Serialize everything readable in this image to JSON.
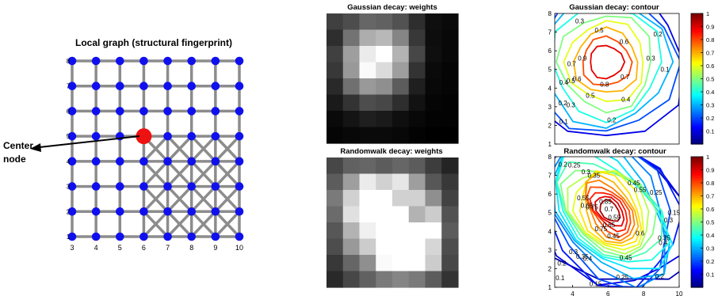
{
  "chart_data": [
    {
      "type": "graph",
      "title": "Local graph (structural fingerprint)",
      "x_ticks": [
        "3",
        "4",
        "5",
        "6",
        "7",
        "8",
        "9",
        "10"
      ],
      "y_ticks": [
        "1",
        "2",
        "3",
        "4",
        "5",
        "6",
        "7",
        "8"
      ],
      "grid": {
        "x": [
          3,
          4,
          5,
          6,
          7,
          8,
          9,
          10
        ],
        "y": [
          1,
          2,
          3,
          4,
          5,
          6,
          7,
          8
        ]
      },
      "node_color": "#1010ee",
      "edge_color": "#8c8c8c",
      "center_node": {
        "x": 6,
        "y": 5,
        "color": "#ee1111"
      },
      "diagonal_region": {
        "x": [
          6,
          10
        ],
        "y": [
          1,
          5
        ]
      },
      "annotation": {
        "line1": "Center",
        "line2": "node"
      }
    },
    {
      "type": "heatmap",
      "title": "Gaussian decay: weights",
      "colormap": "gray",
      "values": [
        [
          0.25,
          0.3,
          0.4,
          0.38,
          0.32,
          0.18,
          0.06,
          0.04
        ],
        [
          0.18,
          0.45,
          0.68,
          0.72,
          0.52,
          0.22,
          0.05,
          0.03
        ],
        [
          0.25,
          0.62,
          0.92,
          1.0,
          0.7,
          0.28,
          0.06,
          0.03
        ],
        [
          0.22,
          0.6,
          0.98,
          0.86,
          0.62,
          0.2,
          0.04,
          0.02
        ],
        [
          0.16,
          0.44,
          0.6,
          0.56,
          0.36,
          0.12,
          0.03,
          0.02
        ],
        [
          0.1,
          0.2,
          0.3,
          0.28,
          0.18,
          0.07,
          0.02,
          0.01
        ],
        [
          0.04,
          0.08,
          0.12,
          0.1,
          0.06,
          0.03,
          0.01,
          0.01
        ],
        [
          0.02,
          0.03,
          0.04,
          0.04,
          0.03,
          0.01,
          0.0,
          0.0
        ]
      ]
    },
    {
      "type": "heatmap",
      "title": "Randomwalk decay: weights",
      "colormap": "gray",
      "values": [
        [
          0.28,
          0.38,
          0.4,
          0.36,
          0.4,
          0.36,
          0.24,
          0.14
        ],
        [
          0.36,
          0.62,
          0.92,
          0.82,
          0.9,
          0.62,
          0.34,
          0.22
        ],
        [
          0.48,
          0.82,
          1.0,
          1.0,
          0.82,
          0.82,
          0.56,
          0.26
        ],
        [
          0.42,
          0.88,
          1.0,
          1.0,
          1.0,
          0.7,
          0.8,
          0.32
        ],
        [
          0.34,
          0.7,
          0.94,
          1.0,
          1.0,
          1.0,
          1.0,
          0.36
        ],
        [
          0.3,
          0.6,
          0.8,
          1.0,
          1.0,
          1.0,
          0.84,
          0.3
        ],
        [
          0.22,
          0.4,
          0.56,
          0.98,
          1.0,
          1.0,
          0.8,
          0.28
        ],
        [
          0.16,
          0.28,
          0.38,
          0.48,
          0.52,
          0.48,
          0.36,
          0.2
        ]
      ]
    },
    {
      "type": "contour",
      "title": "Gaussian decay: contour",
      "colormap": "jet",
      "xlim": [
        3,
        10
      ],
      "ylim": [
        1,
        8
      ],
      "x_ticks": [],
      "y_ticks": [
        1,
        2,
        3,
        4,
        5,
        6,
        7,
        8
      ],
      "center": {
        "x": 5.9,
        "y": 5.4
      },
      "levels": [
        0.1,
        0.2,
        0.3,
        0.4,
        0.5,
        0.6,
        0.7,
        0.8,
        0.9
      ],
      "level_labels": [
        {
          "text": "0.1",
          "x": 3.5,
          "y": 2.2
        },
        {
          "text": "0.1",
          "x": 9.2,
          "y": 5.0
        },
        {
          "text": "0.2",
          "x": 6.2,
          "y": 2.3
        },
        {
          "text": "0.2",
          "x": 8.8,
          "y": 6.9
        },
        {
          "text": "0.2",
          "x": 3.45,
          "y": 3.2
        },
        {
          "text": "0.3",
          "x": 3.9,
          "y": 3.1
        },
        {
          "text": "0.3",
          "x": 4.4,
          "y": 7.6
        },
        {
          "text": "0.3",
          "x": 8.4,
          "y": 5.6
        },
        {
          "text": "0.4",
          "x": 3.5,
          "y": 4.3
        },
        {
          "text": "0.4",
          "x": 7.0,
          "y": 3.4
        },
        {
          "text": "0.5",
          "x": 3.9,
          "y": 4.4
        },
        {
          "text": "0.5",
          "x": 5.0,
          "y": 3.6
        },
        {
          "text": "0.5",
          "x": 5.5,
          "y": 7.1
        },
        {
          "text": "0.6",
          "x": 4.25,
          "y": 4.5
        },
        {
          "text": "0.6",
          "x": 6.9,
          "y": 6.5
        },
        {
          "text": "0.7",
          "x": 3.95,
          "y": 5.3
        },
        {
          "text": "0.7",
          "x": 6.95,
          "y": 4.6
        },
        {
          "text": "0.8",
          "x": 5.8,
          "y": 4.2
        },
        {
          "text": "0.9",
          "x": 4.55,
          "y": 5.6
        }
      ],
      "colorbar": {
        "ticks": [
          "0.1",
          "0.2",
          "0.3",
          "0.4",
          "0.5",
          "0.6",
          "0.7",
          "0.8",
          "0.9",
          "1"
        ]
      }
    },
    {
      "type": "contour",
      "title": "Randomwalk decay: contour",
      "colormap": "jet",
      "xlim": [
        3,
        10
      ],
      "ylim": [
        1,
        8
      ],
      "x_ticks": [
        4,
        6,
        8,
        10
      ],
      "y_ticks": [
        1,
        2,
        3,
        4,
        5,
        6,
        7,
        8
      ],
      "center": {
        "x": 6.1,
        "y": 5.1
      },
      "levels": [
        0.05,
        0.1,
        0.15,
        0.2,
        0.25,
        0.3,
        0.35,
        0.4,
        0.45,
        0.5,
        0.55,
        0.6,
        0.65,
        0.7,
        0.75,
        0.8,
        0.85,
        0.9,
        0.95
      ],
      "level_labels": [
        {
          "text": "0.1",
          "x": 3.3,
          "y": 1.5
        },
        {
          "text": "0.15",
          "x": 5.3,
          "y": 1.2
        },
        {
          "text": "0.25",
          "x": 6.8,
          "y": 1.55
        },
        {
          "text": "0.2",
          "x": 8.9,
          "y": 1.6
        },
        {
          "text": "0.2",
          "x": 3.4,
          "y": 2.3
        },
        {
          "text": "0.2",
          "x": 3.45,
          "y": 7.6
        },
        {
          "text": "0.25",
          "x": 4.1,
          "y": 7.55
        },
        {
          "text": "0.3",
          "x": 4.75,
          "y": 7.2
        },
        {
          "text": "0.35",
          "x": 5.2,
          "y": 7.0
        },
        {
          "text": "0.45",
          "x": 7.45,
          "y": 6.6
        },
        {
          "text": "0.55",
          "x": 7.8,
          "y": 6.25
        },
        {
          "text": "0.45",
          "x": 7.0,
          "y": 2.6
        },
        {
          "text": "0.6",
          "x": 7.8,
          "y": 3.9
        },
        {
          "text": "0.4",
          "x": 9.1,
          "y": 3.4
        },
        {
          "text": "0.3",
          "x": 9.4,
          "y": 4.6
        },
        {
          "text": "0.15",
          "x": 9.7,
          "y": 5.0
        },
        {
          "text": "0.25",
          "x": 8.7,
          "y": 6.1
        },
        {
          "text": "0.35",
          "x": 9.15,
          "y": 3.65
        },
        {
          "text": "0.3",
          "x": 4.05,
          "y": 2.9
        },
        {
          "text": "0.35",
          "x": 4.55,
          "y": 2.65
        },
        {
          "text": "0.4",
          "x": 4.85,
          "y": 2.55
        },
        {
          "text": "0.55",
          "x": 4.6,
          "y": 5.8
        },
        {
          "text": "0.65",
          "x": 4.8,
          "y": 5.4
        },
        {
          "text": "0.75",
          "x": 5.1,
          "y": 5.3
        },
        {
          "text": "0.85",
          "x": 5.85,
          "y": 5.6
        },
        {
          "text": "0.7",
          "x": 6.05,
          "y": 5.2
        },
        {
          "text": "0.55",
          "x": 6.35,
          "y": 4.75
        },
        {
          "text": "0.65",
          "x": 6.05,
          "y": 4.35
        },
        {
          "text": "0.75",
          "x": 5.6,
          "y": 4.15
        },
        {
          "text": "0.45",
          "x": 6.3,
          "y": 3.75
        }
      ],
      "colorbar": {
        "ticks": [
          "0.1",
          "0.2",
          "0.3",
          "0.4",
          "0.5",
          "0.6",
          "0.7",
          "0.8",
          "0.9",
          "1"
        ]
      }
    }
  ]
}
